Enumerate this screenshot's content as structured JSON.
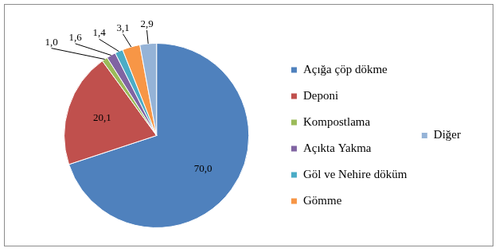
{
  "chart_data": {
    "type": "pie",
    "categories": [
      "Açığa çöp dökme",
      "Deponi",
      "Kompostlama",
      "Açıkta Yakma",
      "Göl ve Nehire döküm",
      "Gömme",
      "Diğer"
    ],
    "values": [
      70.0,
      20.1,
      1.0,
      1.6,
      1.4,
      3.1,
      2.9
    ],
    "value_labels": [
      "70,0",
      "20,1",
      "1,0",
      "1,6",
      "1,4",
      "3,1",
      "2,9"
    ],
    "colors": [
      "#4f81bd",
      "#c0504d",
      "#9bbb59",
      "#8064a2",
      "#4bacc6",
      "#f79646",
      "#95b3d7"
    ],
    "data_labels": true,
    "legend": "right"
  }
}
